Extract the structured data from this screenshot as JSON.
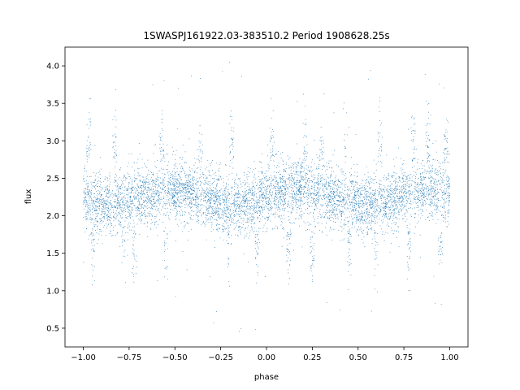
{
  "chart_data": {
    "type": "scatter",
    "title": "1SWASPJ161922.03-383510.2 Period 1908628.25s",
    "xlabel": "phase",
    "ylabel": "flux",
    "xlim": [
      -1.1,
      1.1
    ],
    "ylim": [
      0.25,
      4.25
    ],
    "xticks": [
      -1.0,
      -0.75,
      -0.5,
      -0.25,
      0.0,
      0.25,
      0.5,
      0.75,
      1.0
    ],
    "xtick_labels": [
      "−1.00",
      "−0.75",
      "−0.50",
      "−0.25",
      "0.00",
      "0.25",
      "0.50",
      "0.75",
      "1.00"
    ],
    "yticks": [
      0.5,
      1.0,
      1.5,
      2.0,
      2.5,
      3.0,
      3.5,
      4.0
    ],
    "ytick_labels": [
      "0.5",
      "1.0",
      "1.5",
      "2.0",
      "2.5",
      "3.0",
      "3.5",
      "4.0"
    ],
    "grid": false,
    "point_color": "#1f77b4",
    "series": [
      {
        "x_range": [
          -1.0,
          1.0
        ],
        "mean_flux": 2.25,
        "typical_range": [
          1.5,
          3.0
        ],
        "outlier_range": [
          0.45,
          4.05
        ],
        "bright_clusters": [
          -0.97,
          -0.83,
          -0.57,
          -0.36,
          -0.19,
          0.03,
          0.21,
          0.3,
          0.43,
          0.62,
          0.8,
          0.88,
          0.98
        ],
        "dim_clusters": [
          -0.95,
          -0.78,
          -0.72,
          -0.55,
          -0.2,
          -0.05,
          0.12,
          0.25,
          0.45,
          0.6,
          0.78,
          0.95
        ]
      }
    ]
  }
}
